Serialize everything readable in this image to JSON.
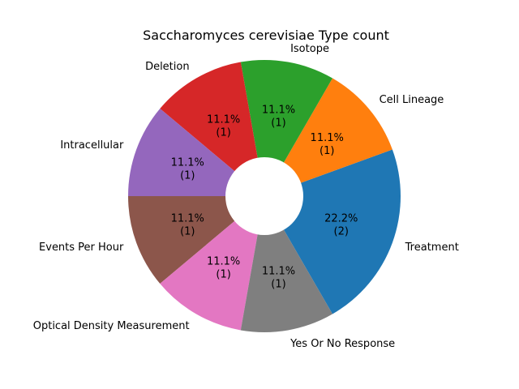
{
  "chart_data": {
    "type": "pie",
    "title": "Saccharomyces cerevisiae Type count",
    "donut": true,
    "start_angle_deg": -60,
    "direction": "counterclockwise",
    "slices": [
      {
        "label": "Treatment",
        "value": 2,
        "pct_text": "22.2%",
        "count_text": "(2)",
        "color": "#1f77b4"
      },
      {
        "label": "Cell Lineage",
        "value": 1,
        "pct_text": "11.1%",
        "count_text": "(1)",
        "color": "#ff7f0e"
      },
      {
        "label": "Isotope",
        "value": 1,
        "pct_text": "11.1%",
        "count_text": "(1)",
        "color": "#2ca02c"
      },
      {
        "label": "Deletion",
        "value": 1,
        "pct_text": "11.1%",
        "count_text": "(1)",
        "color": "#d62728"
      },
      {
        "label": "Intracellular",
        "value": 1,
        "pct_text": "11.1%",
        "count_text": "(1)",
        "color": "#9467bd"
      },
      {
        "label": "Events Per Hour",
        "value": 1,
        "pct_text": "11.1%",
        "count_text": "(1)",
        "color": "#8c564b"
      },
      {
        "label": "Optical Density Measurement",
        "value": 1,
        "pct_text": "11.1%",
        "count_text": "(1)",
        "color": "#e377c2"
      },
      {
        "label": "Yes Or No Response",
        "value": 1,
        "pct_text": "11.1%",
        "count_text": "(1)",
        "color": "#7f7f7f"
      }
    ]
  }
}
